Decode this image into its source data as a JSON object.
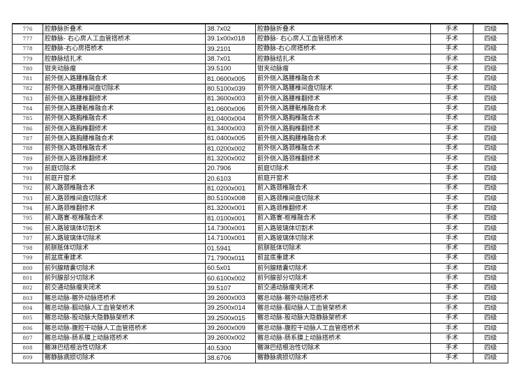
{
  "rows": [
    {
      "no": "776",
      "name": "腔静脉折叠术",
      "code": "38.7x02",
      "name2": "腔静脉折叠术",
      "category": "手术",
      "level": "四级"
    },
    {
      "no": "777",
      "name": "腔静脉-  右心房人工血管搭桥术",
      "code": "39.1x00x018",
      "name2": "腔静脉-  右心房人工血管搭桥术",
      "category": "手术",
      "level": "四级"
    },
    {
      "no": "778",
      "name": "腔静脉-右心房搭桥术",
      "code": "39.2101",
      "name2": "腔静脉-右心房搭桥术",
      "category": "手术",
      "level": "四级"
    },
    {
      "no": "779",
      "name": "腔静脉结扎术",
      "code": "38.7x01",
      "name2": "腔静脉结扎术",
      "category": "手术",
      "level": "四级"
    },
    {
      "no": "780",
      "name": "钳夹动脉瘤",
      "code": "39.5100",
      "name2": "钳夹动脉瘤",
      "category": "手术",
      "level": "四级"
    },
    {
      "no": "781",
      "name": "前外侧入路腰椎融合术",
      "code": "81.0600x005",
      "name2": "前外侧入路腰椎融合术",
      "category": "手术",
      "level": "四级"
    },
    {
      "no": "782",
      "name": "前外侧入路腰椎间盘切除术",
      "code": "80.5100x039",
      "name2": "前外侧入路腰椎间盘切除术",
      "category": "手术",
      "level": "四级"
    },
    {
      "no": "783",
      "name": "前外侧入路腰椎翻修术",
      "code": "81.3600x003",
      "name2": "前外侧入路腰椎翻修术",
      "category": "手术",
      "level": "四级"
    },
    {
      "no": "784",
      "name": "前外侧入路腰骶椎融合术",
      "code": "81.0600x006",
      "name2": "前外侧入路腰骶椎融合术",
      "category": "手术",
      "level": "四级"
    },
    {
      "no": "785",
      "name": "前外侧入路胸椎融合术",
      "code": "81.0400x004",
      "name2": "前外侧入路胸椎融合术",
      "category": "手术",
      "level": "四级"
    },
    {
      "no": "786",
      "name": "前外侧入路胸椎翻修术",
      "code": "81.3400x003",
      "name2": "前外侧入路胸椎翻修术",
      "category": "手术",
      "level": "四级"
    },
    {
      "no": "787",
      "name": "前外侧入路胸腰椎融合术",
      "code": "81.0400x005",
      "name2": "前外侧入路胸腰椎融合术",
      "category": "手术",
      "level": "四级"
    },
    {
      "no": "788",
      "name": "前外侧入路颈椎融合术",
      "code": "81.0200x002",
      "name2": "前外侧入路颈椎融合术",
      "category": "手术",
      "level": "四级"
    },
    {
      "no": "789",
      "name": "前外侧入路颈椎翻修术",
      "code": "81.3200x002",
      "name2": "前外侧入路颈椎翻修术",
      "category": "手术",
      "level": "四级"
    },
    {
      "no": "790",
      "name": "前庭切除术",
      "code": "20.7906",
      "name2": "前庭切除术",
      "category": "手术",
      "level": "四级"
    },
    {
      "no": "791",
      "name": "前庭开窗术",
      "code": "20.6103",
      "name2": "前庭开窗术",
      "category": "手术",
      "level": "四级"
    },
    {
      "no": "792",
      "name": "前入路颈椎融合术",
      "code": "81.0200x001",
      "name2": "前入路颈椎融合术",
      "category": "手术",
      "level": "四级"
    },
    {
      "no": "793",
      "name": "前入路颈椎间盘切除术",
      "code": "80.5100x008",
      "name2": "前入路颈椎间盘切除术",
      "category": "手术",
      "level": "四级"
    },
    {
      "no": "794",
      "name": "前入路颈椎翻修术",
      "code": "81.3200x001",
      "name2": "前入路颈椎翻修术",
      "category": "手术",
      "level": "四级"
    },
    {
      "no": "795",
      "name": "前入路寰-枢椎融合术",
      "code": "81.0100x001",
      "name2": "前入路寰-枢椎融合术",
      "category": "手术",
      "level": "四级"
    },
    {
      "no": "796",
      "name": "前入路玻璃体切割术",
      "code": "14.7300x001",
      "name2": "前入路玻璃体切割术",
      "category": "手术",
      "level": "四级"
    },
    {
      "no": "797",
      "name": "前入路玻璃体切除术",
      "code": "14.7100x001",
      "name2": "前入路玻璃体切除术",
      "category": "手术",
      "level": "四级"
    },
    {
      "no": "798",
      "name": "前胼胝体切除术",
      "code": "01.5941",
      "name2": "前胼胝体切除术",
      "category": "手术",
      "level": "四级"
    },
    {
      "no": "799",
      "name": "前盆底重建术",
      "code": "71.7900x011",
      "name2": "前盆底重建术",
      "category": "手术",
      "level": "四级"
    },
    {
      "no": "800",
      "name": "前列腺精囊切除术",
      "code": "60.5x01",
      "name2": "前列腺精囊切除术",
      "category": "手术",
      "level": "四级"
    },
    {
      "no": "801",
      "name": "前列腺部分切除术",
      "code": "60.6100x002",
      "name2": "前列腺部分切除术",
      "category": "手术",
      "level": "四级"
    },
    {
      "no": "802",
      "name": "前交通动脉瘤夹闭术",
      "code": "39.5107",
      "name2": "前交通动脉瘤夹闭术",
      "category": "手术",
      "level": "四级"
    },
    {
      "no": "803",
      "name": "髂总动脉-髂外动脉搭桥术",
      "code": "39.2600x003",
      "name2": "髂总动脉-髂外动脉搭桥术",
      "category": "手术",
      "level": "四级"
    },
    {
      "no": "804",
      "name": "髂总动脉-腘动脉人工血管架桥术",
      "code": "39.2500x014",
      "name2": "髂总动脉-腘动脉人工血管架桥术",
      "category": "手术",
      "level": "四级"
    },
    {
      "no": "805",
      "name": "髂总动脉-股动脉大隐静脉架桥术",
      "code": "39.2500x015",
      "name2": "髂总动脉-股动脉大隐静脉架桥术",
      "category": "手术",
      "level": "四级"
    },
    {
      "no": "806",
      "name": "髂总动脉-腹腔干动脉人工血管搭桥术",
      "code": "39.2600x009",
      "name2": "髂总动脉-腹腔干动脉人工血管搭桥术",
      "category": "手术",
      "level": "四级"
    },
    {
      "no": "807",
      "name": "髂总动脉-肠系膜上动脉搭桥术",
      "code": "39.2600x002",
      "name2": "髂总动脉-肠系膜上动脉搭桥术",
      "category": "手术",
      "level": "四级"
    },
    {
      "no": "808",
      "name": "髂淋巴结根治性切除术",
      "code": "40.5300",
      "name2": "髂淋巴结根治性切除术",
      "category": "手术",
      "level": "四级"
    },
    {
      "no": "809",
      "name": "髂静脉病损切除术",
      "code": "38.6706",
      "name2": "髂静脉病损切除术",
      "category": "手术",
      "level": "四级"
    }
  ]
}
